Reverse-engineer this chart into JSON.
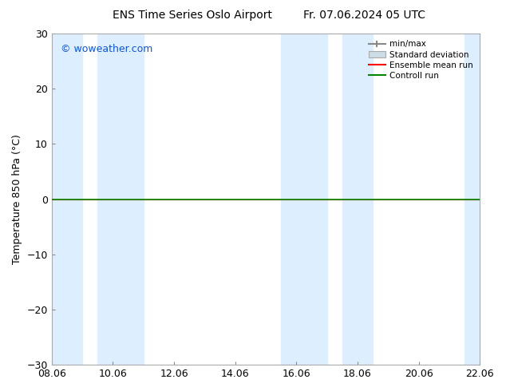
{
  "title_left": "ENS Time Series Oslo Airport",
  "title_right": "Fr. 07.06.2024 05 UTC",
  "ylabel": "Temperature 850 hPa (°C)",
  "watermark": "© woweather.com",
  "watermark_color": "#1155cc",
  "background_color": "#ffffff",
  "plot_bg_color": "#ffffff",
  "ylim": [
    -30,
    30
  ],
  "yticks": [
    -30,
    -20,
    -10,
    0,
    10,
    20,
    30
  ],
  "xtick_labels": [
    "08.06",
    "10.06",
    "12.06",
    "14.06",
    "16.06",
    "18.06",
    "20.06",
    "22.06"
  ],
  "xtick_positions": [
    0,
    2,
    4,
    6,
    8,
    10,
    12,
    14
  ],
  "xlim": [
    0,
    14
  ],
  "shaded_color": "#ddeeff",
  "band_positions": [
    [
      0.0,
      1.0
    ],
    [
      1.5,
      3.0
    ],
    [
      7.5,
      9.0
    ],
    [
      9.5,
      10.5
    ],
    [
      13.5,
      14.0
    ]
  ],
  "control_line_color": "#008800",
  "ensemble_line_color": "#ff0000",
  "line_y": 0.0,
  "legend_labels": [
    "min/max",
    "Standard deviation",
    "Ensemble mean run",
    "Controll run"
  ],
  "legend_colors_line": [
    "#888888",
    "#bbccdd",
    "#ff0000",
    "#008800"
  ],
  "title_fontsize": 10,
  "axis_fontsize": 9,
  "tick_fontsize": 9
}
